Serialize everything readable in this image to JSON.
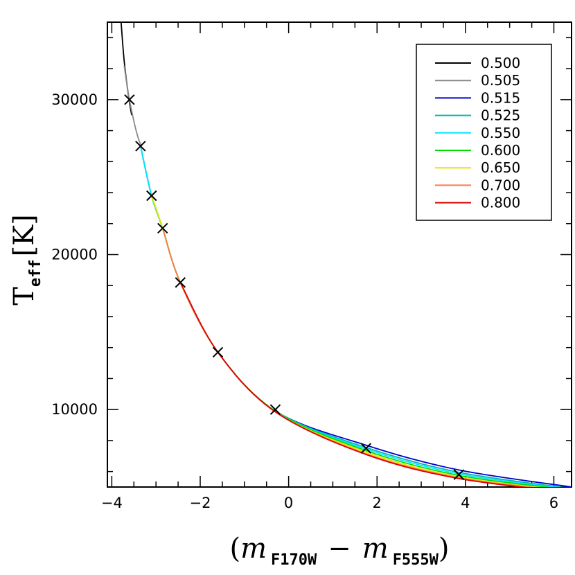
{
  "chart_data": {
    "type": "line",
    "title": "",
    "xlabel_parts": {
      "open": "(",
      "m1": "m",
      "sub1": "F170W",
      "minus": "−",
      "m2": "m",
      "sub2": "F555W",
      "close": ")"
    },
    "ylabel_parts": {
      "main": "T",
      "sub": "eff",
      "unit": "[K]"
    },
    "xlim": [
      -4.1,
      6.4
    ],
    "ylim": [
      5000,
      35000
    ],
    "x_ticks": [
      -4,
      -2,
      0,
      2,
      4,
      6
    ],
    "x_tick_labels": [
      "−4",
      "−2",
      "0",
      "2",
      "4",
      "6"
    ],
    "y_ticks": [
      10000,
      20000,
      30000
    ],
    "y_tick_labels": [
      "10000",
      "20000",
      "30000"
    ],
    "legend_position": "top-right",
    "grid": false,
    "series": [
      {
        "name": "0.500",
        "color": "#000000",
        "x": [
          -3.79,
          -3.72,
          -3.62,
          -3.55
        ],
        "y": [
          35000,
          32500,
          30200,
          29000
        ]
      },
      {
        "name": "0.505",
        "color": "#888888",
        "x": [
          -3.72,
          -3.62,
          -3.5,
          -3.4,
          -3.33
        ],
        "y": [
          32200,
          30300,
          28600,
          27500,
          27000
        ]
      },
      {
        "name": "0.515",
        "color": "#0000cc",
        "x": [
          -3.35,
          -3.1,
          -2.85,
          -2.45,
          -1.6,
          -0.3,
          1.75,
          3.85,
          6.4
        ],
        "y": [
          27000,
          23800,
          21700,
          18200,
          13700,
          9900,
          7700,
          6100,
          5000
        ]
      },
      {
        "name": "0.525",
        "color": "#00b4b4",
        "x": [
          -3.35,
          -3.1,
          -2.85,
          -2.45,
          -1.6,
          -0.3,
          1.75,
          3.85,
          6.4
        ],
        "y": [
          27000,
          23800,
          21700,
          18200,
          13700,
          9900,
          7550,
          5950,
          4900
        ]
      },
      {
        "name": "0.550",
        "color": "#00e8ff",
        "x": [
          -3.35,
          -3.1,
          -2.85,
          -2.45,
          -1.6,
          -0.3,
          1.75,
          3.85,
          6.4
        ],
        "y": [
          27000,
          23800,
          21700,
          18200,
          13700,
          9900,
          7450,
          5850,
          4850
        ]
      },
      {
        "name": "0.600",
        "color": "#00dd00",
        "x": [
          -3.1,
          -2.85,
          -2.45,
          -1.6,
          -0.3,
          1.75,
          3.85,
          6.4
        ],
        "y": [
          23800,
          21700,
          18200,
          13700,
          9900,
          7350,
          5750,
          4800
        ]
      },
      {
        "name": "0.650",
        "color": "#e6e600",
        "x": [
          -3.1,
          -2.85,
          -2.45,
          -1.6,
          -0.3,
          1.75,
          3.85,
          6.4
        ],
        "y": [
          23800,
          21700,
          18200,
          13700,
          9850,
          7250,
          5650,
          4750
        ]
      },
      {
        "name": "0.700",
        "color": "#ff7744",
        "x": [
          -2.85,
          -2.45,
          -1.6,
          -0.3,
          1.75,
          3.85,
          6.4
        ],
        "y": [
          21700,
          18200,
          13700,
          9850,
          7150,
          5600,
          4700
        ]
      },
      {
        "name": "0.800",
        "color": "#dd0000",
        "x": [
          -2.45,
          -1.6,
          -0.3,
          1.75,
          3.85,
          6.4
        ],
        "y": [
          18200,
          13700,
          9850,
          7100,
          5550,
          4650
        ]
      }
    ],
    "markers": {
      "symbol": "×",
      "x": [
        -3.6,
        -3.35,
        -3.1,
        -2.85,
        -2.45,
        -1.6,
        -0.3,
        1.75,
        3.85
      ],
      "y": [
        30000,
        27000,
        23800,
        21700,
        18200,
        13700,
        10000,
        7500,
        5800
      ]
    }
  }
}
